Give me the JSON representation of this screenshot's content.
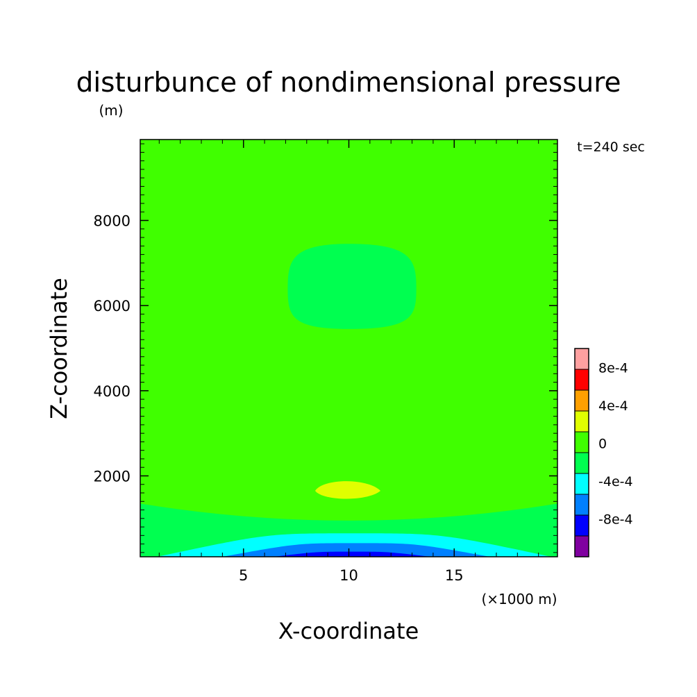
{
  "chart_data": {
    "type": "contour",
    "title": "disturbunce of nondimensional pressure",
    "title_unit": "(m)",
    "time_label": "t=240 sec",
    "xlabel": "X-coordinate",
    "x_unit": "(×1000 m)",
    "ylabel": "Z-coordinate",
    "xlim": [
      0.1,
      19.9
    ],
    "ylim": [
      100,
      9900
    ],
    "x_ticks": [
      5,
      10,
      15
    ],
    "y_ticks": [
      2000,
      4000,
      6000,
      8000
    ],
    "grid": false,
    "colorbar": {
      "placement": "right",
      "levels": [
        -0.0012,
        -0.001,
        -0.0008,
        -0.0006,
        -0.0004,
        -0.0002,
        0,
        0.0002,
        0.0004,
        0.0006,
        0.0008,
        0.001
      ],
      "colors": [
        "#8000a0",
        "#0000ff",
        "#0080ff",
        "#00ffff",
        "#00ff50",
        "#40ff00",
        "#e0ff00",
        "#ffa000",
        "#ff0000",
        "#ffa0a0"
      ],
      "tick_labels": [
        {
          "label": "8e-4",
          "value": 0.0008
        },
        {
          "label": "4e-4",
          "value": 0.0004
        },
        {
          "label": "0",
          "value": 0
        },
        {
          "label": "-4e-4",
          "value": -0.0004
        },
        {
          "label": "-8e-4",
          "value": -0.0008
        }
      ]
    },
    "regions": [
      {
        "name": "background",
        "range": [
          0,
          0.0002
        ],
        "color": "#40ff00"
      },
      {
        "name": "upper-low",
        "range": [
          -0.0002,
          0
        ],
        "color": "#00ff50",
        "center": [
          10,
          6400
        ],
        "extent_x": [
          7.1,
          13.2
        ],
        "extent_z": [
          5450,
          7450
        ]
      },
      {
        "name": "lower-high",
        "range": [
          0.0002,
          0.0004
        ],
        "color": "#e0ff00",
        "center": [
          10.2,
          1650
        ],
        "extent_x": [
          8.4,
          11.5
        ],
        "extent_z": [
          1400,
          1950
        ]
      },
      {
        "name": "surface-layer-1",
        "range": [
          -0.0002,
          0
        ],
        "color": "#00ff50",
        "top_edge": 1350,
        "top_center": 950
      },
      {
        "name": "surface-layer-2",
        "range": [
          -0.0004,
          -0.0002
        ],
        "color": "#00ffff",
        "extent_x": [
          0.9,
          19.6
        ],
        "top_center": 650
      },
      {
        "name": "surface-layer-3",
        "range": [
          -0.0006,
          -0.0004
        ],
        "color": "#0080ff",
        "extent_x": [
          4,
          16.7
        ],
        "top_center": 420
      },
      {
        "name": "surface-layer-4",
        "range": [
          -0.0008,
          -0.0006
        ],
        "color": "#0000ff",
        "extent_x": [
          6.4,
          13.9
        ],
        "top_center": 220
      }
    ]
  }
}
